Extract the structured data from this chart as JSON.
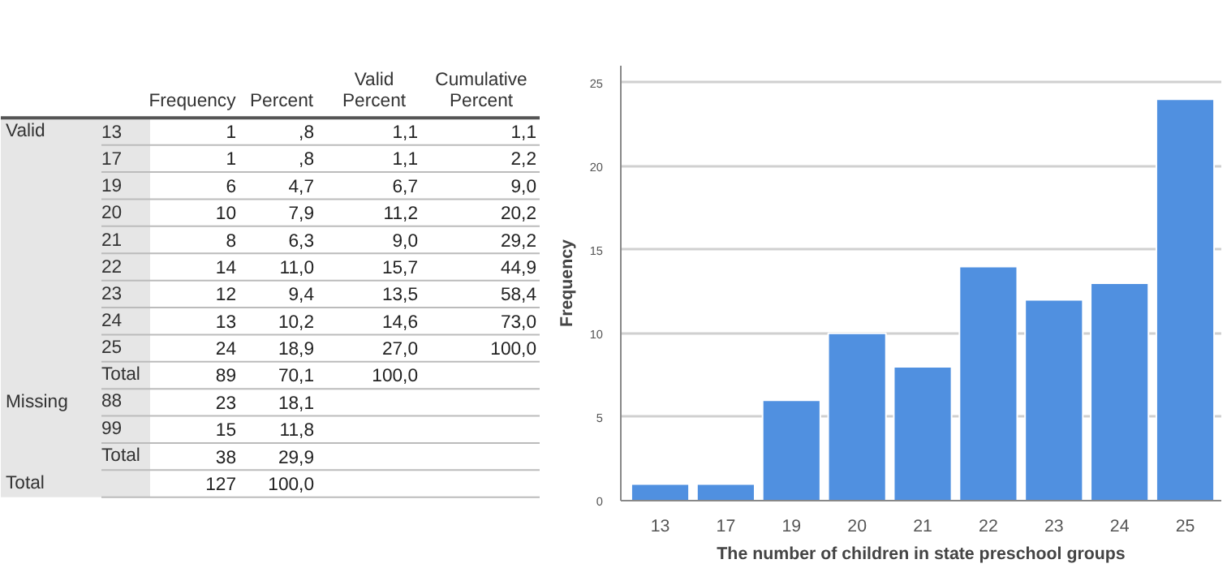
{
  "chart_data": [
    {
      "type": "other",
      "categories": [
        null,
        null,
        "Frequency",
        "Percent",
        "Valid Percent",
        "Cumulative Percent"
      ],
      "cell_labels": [
        [
          "Valid",
          "13",
          "1",
          ",8",
          "1,1",
          "1,1"
        ],
        [
          null,
          "17",
          "1",
          ",8",
          "1,1",
          "2,2"
        ],
        [
          null,
          "19",
          "6",
          "4,7",
          "6,7",
          "9,0"
        ],
        [
          null,
          "20",
          "10",
          "7,9",
          "11,2",
          "20,2"
        ],
        [
          null,
          "21",
          "8",
          "6,3",
          "9,0",
          "29,2"
        ],
        [
          null,
          "22",
          "14",
          "11,0",
          "15,7",
          "44,9"
        ],
        [
          null,
          "23",
          "12",
          "9,4",
          "13,5",
          "58,4"
        ],
        [
          null,
          "24",
          "13",
          "10,2",
          "14,6",
          "73,0"
        ],
        [
          null,
          "25",
          "24",
          "18,9",
          "27,0",
          "100,0"
        ],
        [
          null,
          "Total",
          "89",
          "70,1",
          "100,0",
          null
        ],
        [
          "Missing",
          "88",
          "23",
          "18,1",
          null,
          null
        ],
        [
          null,
          "99",
          "15",
          "11,8",
          null,
          null
        ],
        [
          null,
          "Total",
          "38",
          "29,9",
          null,
          null
        ],
        [
          "Total",
          null,
          "127",
          "100,0",
          null,
          null
        ]
      ]
    },
    {
      "type": "bar",
      "categories": [
        "13",
        "17",
        "19",
        "20",
        "21",
        "22",
        "23",
        "24",
        "25"
      ],
      "values": [
        1,
        1,
        6,
        10,
        8,
        14,
        12,
        13,
        24
      ],
      "color": "#5090e0",
      "xlabel": "The number of children in state preschool groups",
      "ylabel": "Frequency",
      "ylim": [
        0,
        26
      ],
      "yticks": [
        0,
        5,
        10,
        15,
        20,
        25
      ],
      "grid": "y"
    }
  ]
}
